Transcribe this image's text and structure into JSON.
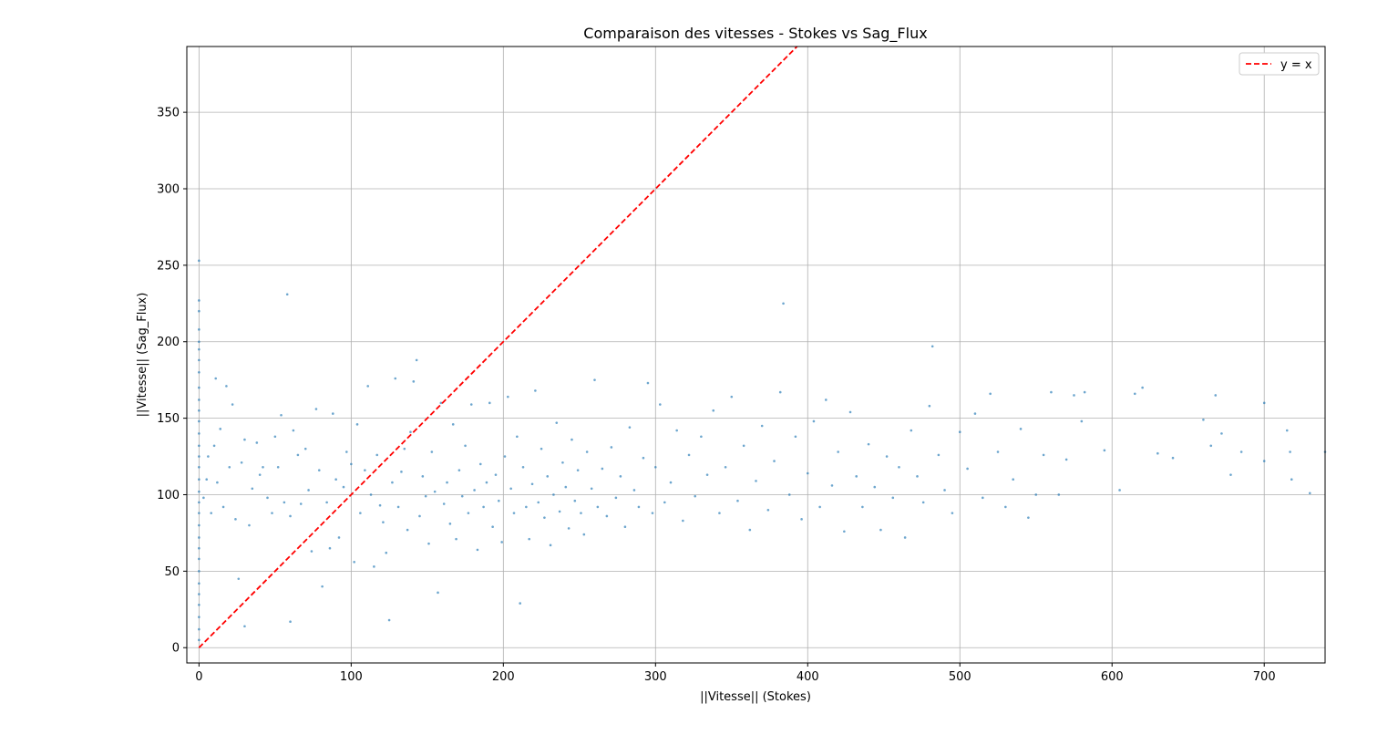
{
  "chart_data": {
    "type": "scatter",
    "title": "Comparaison des vitesses - Stokes vs Sag_Flux",
    "xlabel": "||Vitesse|| (Stokes)",
    "ylabel": "||Vitesse|| (Sag_Flux)",
    "xlim": [
      -8,
      740
    ],
    "ylim": [
      -10,
      393
    ],
    "xticks": [
      0,
      100,
      200,
      300,
      400,
      500,
      600,
      700
    ],
    "yticks": [
      0,
      50,
      100,
      150,
      200,
      250,
      300,
      350
    ],
    "grid": true,
    "legend": {
      "placement": "top-right",
      "entries": [
        {
          "label": "y = x",
          "color": "#ff0000",
          "style": "dashed"
        }
      ]
    },
    "point_color": "#1f77b4",
    "series": [
      {
        "type": "line",
        "label": "y = x",
        "color": "#ff0000",
        "x": [
          0,
          400
        ],
        "y": [
          0,
          400
        ]
      },
      {
        "type": "scatter",
        "color": "#1f77b4",
        "points": [
          [
            0,
            5
          ],
          [
            0,
            12
          ],
          [
            0,
            20
          ],
          [
            0,
            28
          ],
          [
            0,
            35
          ],
          [
            0,
            42
          ],
          [
            0,
            50
          ],
          [
            0,
            58
          ],
          [
            0,
            65
          ],
          [
            0,
            72
          ],
          [
            0,
            80
          ],
          [
            0,
            88
          ],
          [
            0,
            95
          ],
          [
            0,
            102
          ],
          [
            0,
            110
          ],
          [
            0,
            118
          ],
          [
            0,
            125
          ],
          [
            0,
            132
          ],
          [
            0,
            140
          ],
          [
            0,
            148
          ],
          [
            0,
            155
          ],
          [
            0,
            162
          ],
          [
            0,
            170
          ],
          [
            0,
            180
          ],
          [
            0,
            188
          ],
          [
            0,
            195
          ],
          [
            0,
            200
          ],
          [
            0,
            208
          ],
          [
            0,
            220
          ],
          [
            0,
            227
          ],
          [
            0,
            253
          ],
          [
            3,
            98
          ],
          [
            5,
            110
          ],
          [
            6,
            125
          ],
          [
            8,
            88
          ],
          [
            10,
            132
          ],
          [
            11,
            176
          ],
          [
            12,
            108
          ],
          [
            14,
            143
          ],
          [
            16,
            92
          ],
          [
            18,
            171
          ],
          [
            20,
            118
          ],
          [
            22,
            159
          ],
          [
            24,
            84
          ],
          [
            26,
            45
          ],
          [
            28,
            121
          ],
          [
            30,
            14
          ],
          [
            30,
            136
          ],
          [
            33,
            80
          ],
          [
            35,
            104
          ],
          [
            38,
            134
          ],
          [
            40,
            113
          ],
          [
            42,
            118
          ],
          [
            45,
            98
          ],
          [
            48,
            88
          ],
          [
            50,
            138
          ],
          [
            52,
            118
          ],
          [
            54,
            152
          ],
          [
            56,
            95
          ],
          [
            58,
            231
          ],
          [
            60,
            17
          ],
          [
            60,
            86
          ],
          [
            62,
            142
          ],
          [
            65,
            126
          ],
          [
            67,
            94
          ],
          [
            70,
            130
          ],
          [
            72,
            103
          ],
          [
            74,
            63
          ],
          [
            77,
            156
          ],
          [
            79,
            116
          ],
          [
            81,
            40
          ],
          [
            84,
            95
          ],
          [
            86,
            65
          ],
          [
            88,
            153
          ],
          [
            90,
            110
          ],
          [
            92,
            72
          ],
          [
            95,
            105
          ],
          [
            97,
            128
          ],
          [
            100,
            120
          ],
          [
            102,
            56
          ],
          [
            104,
            146
          ],
          [
            106,
            88
          ],
          [
            109,
            116
          ],
          [
            111,
            171
          ],
          [
            113,
            100
          ],
          [
            115,
            53
          ],
          [
            117,
            126
          ],
          [
            119,
            93
          ],
          [
            121,
            82
          ],
          [
            123,
            62
          ],
          [
            125,
            18
          ],
          [
            127,
            108
          ],
          [
            129,
            176
          ],
          [
            131,
            92
          ],
          [
            133,
            115
          ],
          [
            135,
            130
          ],
          [
            137,
            77
          ],
          [
            139,
            141
          ],
          [
            141,
            174
          ],
          [
            143,
            188
          ],
          [
            145,
            86
          ],
          [
            147,
            112
          ],
          [
            149,
            99
          ],
          [
            151,
            68
          ],
          [
            153,
            128
          ],
          [
            155,
            102
          ],
          [
            157,
            36
          ],
          [
            159,
            160
          ],
          [
            161,
            94
          ],
          [
            163,
            108
          ],
          [
            165,
            81
          ],
          [
            167,
            146
          ],
          [
            169,
            71
          ],
          [
            171,
            116
          ],
          [
            173,
            99
          ],
          [
            175,
            132
          ],
          [
            177,
            88
          ],
          [
            179,
            159
          ],
          [
            181,
            103
          ],
          [
            183,
            64
          ],
          [
            185,
            120
          ],
          [
            187,
            92
          ],
          [
            189,
            108
          ],
          [
            191,
            160
          ],
          [
            193,
            79
          ],
          [
            195,
            113
          ],
          [
            197,
            96
          ],
          [
            199,
            69
          ],
          [
            201,
            125
          ],
          [
            203,
            164
          ],
          [
            205,
            104
          ],
          [
            207,
            88
          ],
          [
            209,
            138
          ],
          [
            211,
            29
          ],
          [
            213,
            118
          ],
          [
            215,
            92
          ],
          [
            217,
            71
          ],
          [
            219,
            107
          ],
          [
            221,
            168
          ],
          [
            223,
            95
          ],
          [
            225,
            130
          ],
          [
            227,
            85
          ],
          [
            229,
            112
          ],
          [
            231,
            67
          ],
          [
            233,
            100
          ],
          [
            235,
            147
          ],
          [
            237,
            89
          ],
          [
            239,
            121
          ],
          [
            241,
            105
          ],
          [
            243,
            78
          ],
          [
            245,
            136
          ],
          [
            247,
            96
          ],
          [
            249,
            116
          ],
          [
            251,
            88
          ],
          [
            253,
            74
          ],
          [
            255,
            128
          ],
          [
            258,
            104
          ],
          [
            260,
            175
          ],
          [
            262,
            92
          ],
          [
            265,
            117
          ],
          [
            268,
            86
          ],
          [
            271,
            131
          ],
          [
            274,
            98
          ],
          [
            277,
            112
          ],
          [
            280,
            79
          ],
          [
            283,
            144
          ],
          [
            286,
            103
          ],
          [
            289,
            92
          ],
          [
            292,
            124
          ],
          [
            295,
            173
          ],
          [
            298,
            88
          ],
          [
            300,
            118
          ],
          [
            303,
            159
          ],
          [
            306,
            95
          ],
          [
            310,
            108
          ],
          [
            314,
            142
          ],
          [
            318,
            83
          ],
          [
            322,
            126
          ],
          [
            326,
            99
          ],
          [
            330,
            138
          ],
          [
            334,
            113
          ],
          [
            338,
            155
          ],
          [
            342,
            88
          ],
          [
            346,
            118
          ],
          [
            350,
            164
          ],
          [
            354,
            96
          ],
          [
            358,
            132
          ],
          [
            362,
            77
          ],
          [
            366,
            109
          ],
          [
            370,
            145
          ],
          [
            374,
            90
          ],
          [
            378,
            122
          ],
          [
            382,
            167
          ],
          [
            384,
            225
          ],
          [
            388,
            100
          ],
          [
            392,
            138
          ],
          [
            396,
            84
          ],
          [
            400,
            114
          ],
          [
            404,
            148
          ],
          [
            408,
            92
          ],
          [
            412,
            162
          ],
          [
            416,
            106
          ],
          [
            420,
            128
          ],
          [
            424,
            76
          ],
          [
            428,
            154
          ],
          [
            432,
            112
          ],
          [
            436,
            92
          ],
          [
            440,
            133
          ],
          [
            444,
            105
          ],
          [
            448,
            77
          ],
          [
            452,
            125
          ],
          [
            456,
            98
          ],
          [
            460,
            118
          ],
          [
            464,
            72
          ],
          [
            468,
            142
          ],
          [
            472,
            112
          ],
          [
            476,
            95
          ],
          [
            480,
            158
          ],
          [
            482,
            197
          ],
          [
            486,
            126
          ],
          [
            490,
            103
          ],
          [
            495,
            88
          ],
          [
            500,
            141
          ],
          [
            505,
            117
          ],
          [
            510,
            153
          ],
          [
            515,
            98
          ],
          [
            520,
            166
          ],
          [
            525,
            128
          ],
          [
            530,
            92
          ],
          [
            535,
            110
          ],
          [
            540,
            143
          ],
          [
            545,
            85
          ],
          [
            550,
            100
          ],
          [
            555,
            126
          ],
          [
            560,
            167
          ],
          [
            565,
            100
          ],
          [
            570,
            123
          ],
          [
            575,
            165
          ],
          [
            580,
            148
          ],
          [
            582,
            167
          ],
          [
            595,
            129
          ],
          [
            605,
            103
          ],
          [
            615,
            166
          ],
          [
            620,
            170
          ],
          [
            630,
            127
          ],
          [
            640,
            124
          ],
          [
            660,
            149
          ],
          [
            665,
            132
          ],
          [
            668,
            165
          ],
          [
            672,
            140
          ],
          [
            678,
            113
          ],
          [
            685,
            128
          ],
          [
            700,
            160
          ],
          [
            700,
            122
          ],
          [
            715,
            142
          ],
          [
            717,
            128
          ],
          [
            718,
            110
          ],
          [
            730,
            101
          ],
          [
            740,
            128
          ]
        ]
      }
    ]
  }
}
